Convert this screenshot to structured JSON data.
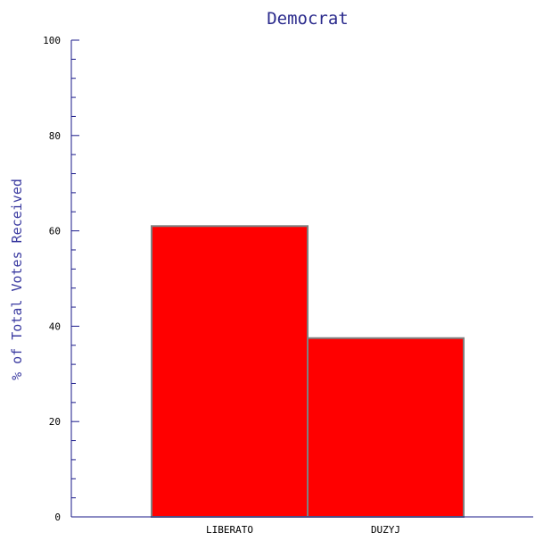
{
  "chart_data": {
    "type": "bar",
    "title": "Democrat",
    "xlabel": "",
    "ylabel": "% of Total Votes Received",
    "categories": [
      "LIBERATO",
      "DUZYJ"
    ],
    "values": [
      61,
      37.5
    ],
    "ylim": [
      0,
      100
    ],
    "yticks": [
      0,
      20,
      40,
      60,
      80,
      100
    ],
    "ytick_labels": [
      "0",
      "20",
      "40",
      "60",
      "80",
      "100"
    ],
    "grid": false,
    "legend": "none",
    "colors": {
      "bar_fill": "#ff0000",
      "bar_edge": "#808080",
      "axis": "#1a1a8a",
      "title": "#2a2a8c"
    }
  }
}
